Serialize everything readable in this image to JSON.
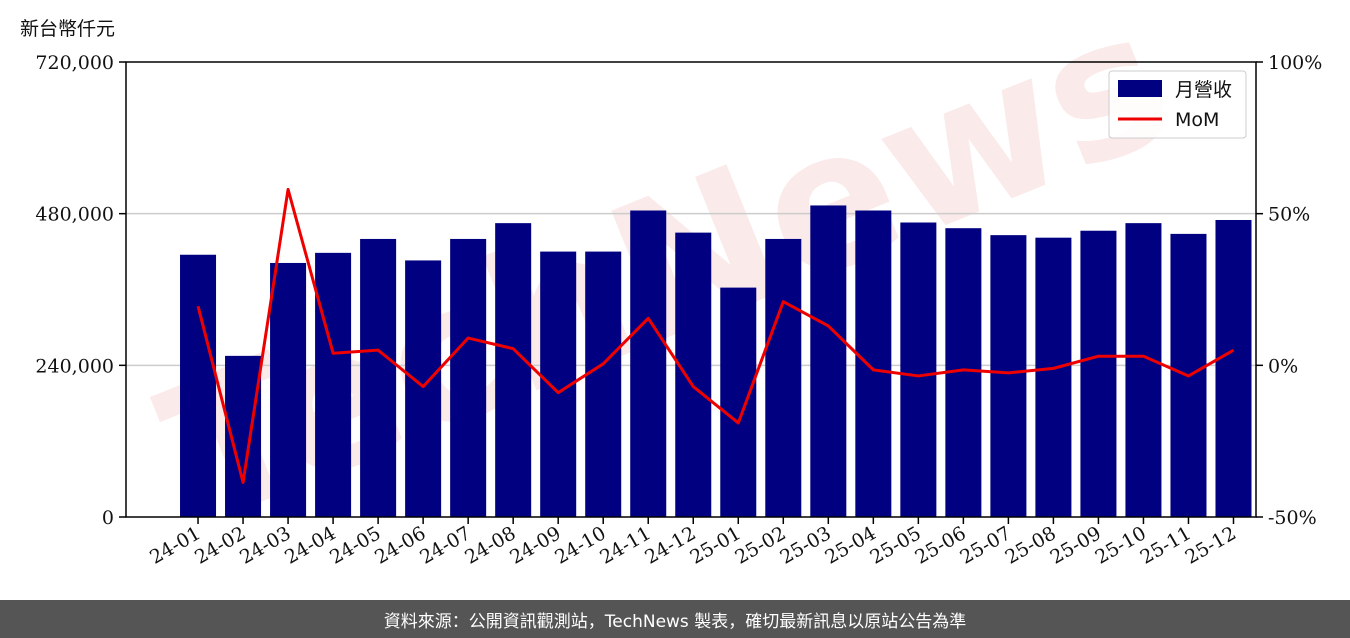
{
  "unit_label": "新台幣仟元",
  "footer": "資料來源：公開資訊觀測站，TechNews 製表，確切最新訊息以原站公告為準",
  "watermark": "TechNews",
  "colors": {
    "bar": "#000080",
    "line": "#ee0000",
    "footer_bg": "#555555",
    "grid": "#cccccc"
  },
  "chart_data": {
    "type": "bar",
    "categories": [
      "24-01",
      "24-02",
      "24-03",
      "24-04",
      "24-05",
      "24-06",
      "24-07",
      "24-08",
      "24-09",
      "24-10",
      "24-11",
      "24-12",
      "25-01",
      "25-02",
      "25-03",
      "25-04",
      "25-05",
      "25-06",
      "25-07",
      "25-08",
      "25-09",
      "25-10",
      "25-11",
      "25-12"
    ],
    "series": [
      {
        "name": "月營收",
        "axis": "left",
        "type": "bar",
        "values": [
          415000,
          255000,
          402000,
          418000,
          440000,
          406000,
          440000,
          465000,
          420000,
          420000,
          485000,
          450000,
          363000,
          440000,
          493000,
          485000,
          466000,
          457000,
          446000,
          442000,
          453000,
          465000,
          448000,
          470000
        ]
      },
      {
        "name": "MoM",
        "axis": "right",
        "type": "line",
        "values": [
          19.5,
          -38.6,
          58.0,
          4.0,
          5.0,
          -7.0,
          9.0,
          5.5,
          -9.0,
          0.5,
          15.5,
          -7.0,
          -19.0,
          21.0,
          13.0,
          -1.5,
          -3.5,
          -1.5,
          -2.5,
          -1.0,
          3.0,
          3.0,
          -3.5,
          5.0
        ]
      }
    ],
    "yleft": {
      "ylim": [
        0,
        720000
      ],
      "ticks": [
        "0",
        "240,000",
        "480,000",
        "720,000"
      ],
      "tick_values": [
        0,
        240000,
        480000,
        720000
      ]
    },
    "yright": {
      "ylim": [
        -50,
        100
      ],
      "ticks": [
        "-50%",
        "0%",
        "50%",
        "100%"
      ],
      "tick_values": [
        -50,
        0,
        50,
        100
      ]
    },
    "grid": "horizontal",
    "legend": "top-right"
  }
}
